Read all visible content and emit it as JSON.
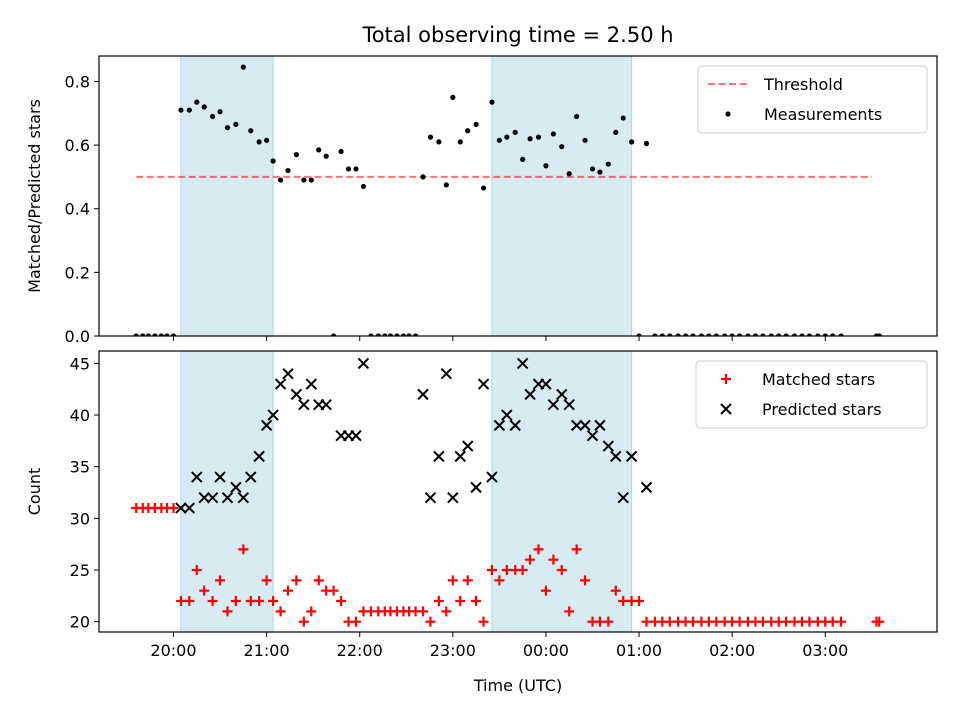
{
  "title": "Total observing time = 2.50 h",
  "colors": {
    "band": "#add8e6",
    "threshold": "#ff0000",
    "measurement": "#000000",
    "matched": "#ff0000",
    "predicted": "#000000"
  },
  "chart_data": [
    {
      "type": "scatter",
      "ylabel": "Matched/Predicted stars",
      "ylim": [
        0,
        0.88
      ],
      "yticks": [
        0.0,
        0.2,
        0.4,
        0.6,
        0.8
      ],
      "ytick_labels": [
        "0.0",
        "0.2",
        "0.4",
        "0.6",
        "0.8"
      ],
      "xlim_hours": [
        19.2,
        28.2
      ],
      "legend": {
        "placement": "top-right",
        "entries": [
          "Threshold",
          "Measurements"
        ]
      },
      "shaded_bands_hours": [
        [
          20.08,
          21.07
        ],
        [
          23.42,
          24.92
        ]
      ],
      "threshold": {
        "name": "Threshold",
        "value": 0.5,
        "x_range_hours": [
          19.6,
          27.5
        ]
      },
      "series": [
        {
          "name": "Measurements",
          "points": [
            [
              19.6,
              0
            ],
            [
              19.67,
              0
            ],
            [
              19.73,
              0
            ],
            [
              19.8,
              0
            ],
            [
              19.87,
              0
            ],
            [
              19.93,
              0
            ],
            [
              20.0,
              0
            ],
            [
              20.08,
              0.71
            ],
            [
              20.17,
              0.71
            ],
            [
              20.25,
              0.735
            ],
            [
              20.33,
              0.72
            ],
            [
              20.42,
              0.69
            ],
            [
              20.5,
              0.705
            ],
            [
              20.58,
              0.655
            ],
            [
              20.67,
              0.665
            ],
            [
              20.75,
              0.845
            ],
            [
              20.83,
              0.645
            ],
            [
              20.92,
              0.61
            ],
            [
              21.0,
              0.615
            ],
            [
              21.07,
              0.55
            ],
            [
              21.15,
              0.49
            ],
            [
              21.23,
              0.52
            ],
            [
              21.32,
              0.57
            ],
            [
              21.4,
              0.49
            ],
            [
              21.48,
              0.49
            ],
            [
              21.56,
              0.585
            ],
            [
              21.64,
              0.565
            ],
            [
              21.72,
              0
            ],
            [
              21.8,
              0.58
            ],
            [
              21.88,
              0.525
            ],
            [
              21.96,
              0.525
            ],
            [
              22.04,
              0.47
            ],
            [
              22.12,
              0
            ],
            [
              22.2,
              0
            ],
            [
              22.27,
              0
            ],
            [
              22.33,
              0
            ],
            [
              22.4,
              0
            ],
            [
              22.47,
              0
            ],
            [
              22.53,
              0
            ],
            [
              22.6,
              0
            ],
            [
              22.68,
              0.5
            ],
            [
              22.76,
              0.625
            ],
            [
              22.85,
              0.61
            ],
            [
              22.93,
              0.475
            ],
            [
              23.0,
              0.75
            ],
            [
              23.08,
              0.61
            ],
            [
              23.16,
              0.645
            ],
            [
              23.25,
              0.665
            ],
            [
              23.33,
              0.465
            ],
            [
              23.42,
              0.735
            ],
            [
              23.5,
              0.615
            ],
            [
              23.58,
              0.625
            ],
            [
              23.67,
              0.64
            ],
            [
              23.75,
              0.555
            ],
            [
              23.83,
              0.62
            ],
            [
              23.92,
              0.625
            ],
            [
              24.0,
              0.535
            ],
            [
              24.08,
              0.635
            ],
            [
              24.17,
              0.595
            ],
            [
              24.25,
              0.51
            ],
            [
              24.33,
              0.69
            ],
            [
              24.42,
              0.615
            ],
            [
              24.5,
              0.525
            ],
            [
              24.58,
              0.515
            ],
            [
              24.67,
              0.54
            ],
            [
              24.75,
              0.64
            ],
            [
              24.83,
              0.685
            ],
            [
              24.92,
              0.61
            ],
            [
              25.0,
              0
            ],
            [
              25.08,
              0.605
            ],
            [
              25.17,
              0
            ],
            [
              25.25,
              0
            ],
            [
              25.33,
              0
            ],
            [
              25.42,
              0
            ],
            [
              25.5,
              0
            ],
            [
              25.58,
              0
            ],
            [
              25.67,
              0
            ],
            [
              25.75,
              0
            ],
            [
              25.83,
              0
            ],
            [
              25.92,
              0
            ],
            [
              26.0,
              0
            ],
            [
              26.08,
              0
            ],
            [
              26.17,
              0
            ],
            [
              26.25,
              0
            ],
            [
              26.33,
              0
            ],
            [
              26.42,
              0
            ],
            [
              26.5,
              0
            ],
            [
              26.58,
              0
            ],
            [
              26.67,
              0
            ],
            [
              26.75,
              0
            ],
            [
              26.83,
              0
            ],
            [
              26.92,
              0
            ],
            [
              27.0,
              0
            ],
            [
              27.08,
              0
            ],
            [
              27.17,
              0
            ],
            [
              27.55,
              0
            ],
            [
              27.58,
              0
            ]
          ]
        }
      ]
    },
    {
      "type": "scatter",
      "xlabel": "Time (UTC)",
      "ylabel": "Count",
      "ylim": [
        19.0,
        46.2
      ],
      "yticks": [
        20,
        25,
        30,
        35,
        40,
        45
      ],
      "ytick_labels": [
        "20",
        "25",
        "30",
        "35",
        "40",
        "45"
      ],
      "xlim_hours": [
        19.2,
        28.2
      ],
      "xticks_hours": [
        20,
        21,
        22,
        23,
        24,
        25,
        26,
        27
      ],
      "xtick_labels": [
        "20:00",
        "21:00",
        "22:00",
        "23:00",
        "00:00",
        "01:00",
        "02:00",
        "03:00"
      ],
      "legend": {
        "placement": "top-right",
        "entries": [
          "Matched stars",
          "Predicted stars"
        ]
      },
      "shaded_bands_hours": [
        [
          20.08,
          21.07
        ],
        [
          23.42,
          24.92
        ]
      ],
      "series": [
        {
          "name": "Matched stars",
          "marker": "plus",
          "points": [
            [
              19.6,
              31
            ],
            [
              19.67,
              31
            ],
            [
              19.73,
              31
            ],
            [
              19.8,
              31
            ],
            [
              19.87,
              31
            ],
            [
              19.93,
              31
            ],
            [
              20.0,
              31
            ],
            [
              20.08,
              22
            ],
            [
              20.17,
              22
            ],
            [
              20.25,
              25
            ],
            [
              20.33,
              23
            ],
            [
              20.42,
              22
            ],
            [
              20.5,
              24
            ],
            [
              20.58,
              21
            ],
            [
              20.67,
              22
            ],
            [
              20.75,
              27
            ],
            [
              20.83,
              22
            ],
            [
              20.92,
              22
            ],
            [
              21.0,
              24
            ],
            [
              21.07,
              22
            ],
            [
              21.15,
              21
            ],
            [
              21.23,
              23
            ],
            [
              21.32,
              24
            ],
            [
              21.4,
              20
            ],
            [
              21.48,
              21
            ],
            [
              21.56,
              24
            ],
            [
              21.64,
              23
            ],
            [
              21.72,
              23
            ],
            [
              21.8,
              22
            ],
            [
              21.88,
              20
            ],
            [
              21.96,
              20
            ],
            [
              22.04,
              21
            ],
            [
              22.12,
              21
            ],
            [
              22.2,
              21
            ],
            [
              22.27,
              21
            ],
            [
              22.33,
              21
            ],
            [
              22.4,
              21
            ],
            [
              22.47,
              21
            ],
            [
              22.53,
              21
            ],
            [
              22.6,
              21
            ],
            [
              22.68,
              21
            ],
            [
              22.76,
              20
            ],
            [
              22.85,
              22
            ],
            [
              22.93,
              21
            ],
            [
              23.0,
              24
            ],
            [
              23.08,
              22
            ],
            [
              23.16,
              24
            ],
            [
              23.25,
              22
            ],
            [
              23.33,
              20
            ],
            [
              23.42,
              25
            ],
            [
              23.5,
              24
            ],
            [
              23.58,
              25
            ],
            [
              23.67,
              25
            ],
            [
              23.75,
              25
            ],
            [
              23.83,
              26
            ],
            [
              23.92,
              27
            ],
            [
              24.0,
              23
            ],
            [
              24.08,
              26
            ],
            [
              24.17,
              25
            ],
            [
              24.25,
              21
            ],
            [
              24.33,
              27
            ],
            [
              24.42,
              24
            ],
            [
              24.5,
              20
            ],
            [
              24.58,
              20
            ],
            [
              24.67,
              20
            ],
            [
              24.75,
              23
            ],
            [
              24.83,
              22
            ],
            [
              24.92,
              22
            ],
            [
              25.0,
              22
            ],
            [
              25.08,
              20
            ],
            [
              25.17,
              20
            ],
            [
              25.25,
              20
            ],
            [
              25.33,
              20
            ],
            [
              25.42,
              20
            ],
            [
              25.5,
              20
            ],
            [
              25.58,
              20
            ],
            [
              25.67,
              20
            ],
            [
              25.75,
              20
            ],
            [
              25.83,
              20
            ],
            [
              25.92,
              20
            ],
            [
              26.0,
              20
            ],
            [
              26.08,
              20
            ],
            [
              26.17,
              20
            ],
            [
              26.25,
              20
            ],
            [
              26.33,
              20
            ],
            [
              26.42,
              20
            ],
            [
              26.5,
              20
            ],
            [
              26.58,
              20
            ],
            [
              26.67,
              20
            ],
            [
              26.75,
              20
            ],
            [
              26.83,
              20
            ],
            [
              26.92,
              20
            ],
            [
              27.0,
              20
            ],
            [
              27.08,
              20
            ],
            [
              27.17,
              20
            ],
            [
              27.55,
              20
            ],
            [
              27.58,
              20
            ]
          ]
        },
        {
          "name": "Predicted stars",
          "marker": "cross",
          "points": [
            [
              20.08,
              31
            ],
            [
              20.17,
              31
            ],
            [
              20.25,
              34
            ],
            [
              20.33,
              32
            ],
            [
              20.42,
              32
            ],
            [
              20.5,
              34
            ],
            [
              20.58,
              32
            ],
            [
              20.67,
              33
            ],
            [
              20.75,
              32
            ],
            [
              20.83,
              34
            ],
            [
              20.92,
              36
            ],
            [
              21.0,
              39
            ],
            [
              21.07,
              40
            ],
            [
              21.15,
              43
            ],
            [
              21.23,
              44
            ],
            [
              21.32,
              42
            ],
            [
              21.4,
              41
            ],
            [
              21.48,
              43
            ],
            [
              21.56,
              41
            ],
            [
              21.64,
              41
            ],
            [
              21.8,
              38
            ],
            [
              21.88,
              38
            ],
            [
              21.96,
              38
            ],
            [
              22.04,
              45
            ],
            [
              22.68,
              42
            ],
            [
              22.76,
              32
            ],
            [
              22.85,
              36
            ],
            [
              22.93,
              44
            ],
            [
              23.0,
              32
            ],
            [
              23.08,
              36
            ],
            [
              23.16,
              37
            ],
            [
              23.25,
              33
            ],
            [
              23.33,
              43
            ],
            [
              23.42,
              34
            ],
            [
              23.5,
              39
            ],
            [
              23.58,
              40
            ],
            [
              23.67,
              39
            ],
            [
              23.75,
              45
            ],
            [
              23.83,
              42
            ],
            [
              23.92,
              43
            ],
            [
              24.0,
              43
            ],
            [
              24.08,
              41
            ],
            [
              24.17,
              42
            ],
            [
              24.25,
              41
            ],
            [
              24.33,
              39
            ],
            [
              24.42,
              39
            ],
            [
              24.5,
              38
            ],
            [
              24.58,
              39
            ],
            [
              24.67,
              37
            ],
            [
              24.75,
              36
            ],
            [
              24.83,
              32
            ],
            [
              24.92,
              36
            ],
            [
              25.08,
              33
            ]
          ]
        }
      ]
    }
  ]
}
